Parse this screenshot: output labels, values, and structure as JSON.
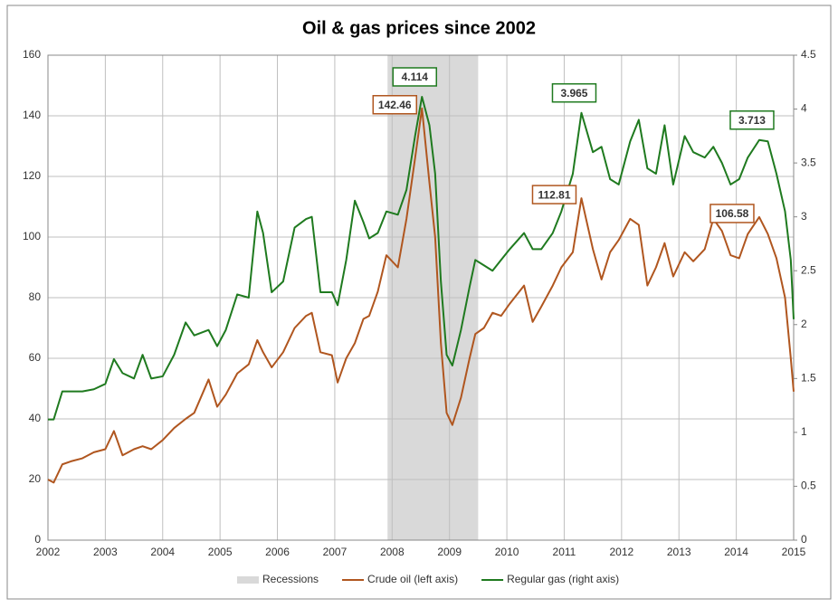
{
  "chart_data": {
    "type": "line",
    "title": "Oil & gas prices since 2002",
    "x": [
      2002.0,
      2002.1,
      2002.25,
      2002.4,
      2002.6,
      2002.8,
      2003.0,
      2003.15,
      2003.3,
      2003.5,
      2003.65,
      2003.8,
      2004.0,
      2004.2,
      2004.4,
      2004.55,
      2004.8,
      2004.95,
      2005.1,
      2005.3,
      2005.5,
      2005.65,
      2005.75,
      2005.9,
      2006.1,
      2006.3,
      2006.5,
      2006.6,
      2006.75,
      2006.95,
      2007.05,
      2007.2,
      2007.35,
      2007.5,
      2007.6,
      2007.75,
      2007.9,
      2008.1,
      2008.25,
      2008.4,
      2008.52,
      2008.65,
      2008.75,
      2008.85,
      2008.95,
      2009.05,
      2009.2,
      2009.35,
      2009.45,
      2009.6,
      2009.75,
      2009.9,
      2010.05,
      2010.3,
      2010.45,
      2010.6,
      2010.8,
      2010.95,
      2011.15,
      2011.3,
      2011.5,
      2011.65,
      2011.8,
      2011.95,
      2012.15,
      2012.3,
      2012.45,
      2012.6,
      2012.75,
      2012.9,
      2013.1,
      2013.25,
      2013.45,
      2013.6,
      2013.75,
      2013.9,
      2014.05,
      2014.2,
      2014.4,
      2014.55,
      2014.7,
      2014.85,
      2014.95,
      2015.0
    ],
    "series": [
      {
        "name": "Crude oil (left axis)",
        "color": "#b0561f",
        "axis": "y",
        "values": [
          20,
          19,
          25,
          26,
          27,
          29,
          30,
          36,
          28,
          30,
          31,
          30,
          33,
          37,
          40,
          42,
          53,
          44,
          48,
          55,
          58,
          66,
          62,
          57,
          62,
          70,
          74,
          75,
          62,
          61,
          52,
          60,
          65,
          73,
          74,
          82,
          94,
          90,
          106,
          126,
          142.46,
          118,
          100,
          65,
          42,
          38,
          47,
          60,
          68,
          70,
          75,
          74,
          78,
          84,
          72,
          77,
          84,
          90,
          95,
          112.81,
          96,
          86,
          95,
          99,
          106,
          104,
          84,
          90,
          98,
          87,
          95,
          92,
          96,
          106,
          102,
          94,
          93,
          101,
          106.58,
          101,
          93,
          80,
          60,
          49
        ],
        "annotations": [
          {
            "x": 2008.52,
            "value": 142.46
          },
          {
            "x": 2011.3,
            "value": 112.81
          },
          {
            "x": 2014.4,
            "value": 106.58
          }
        ]
      },
      {
        "name": "Regular gas (right axis)",
        "color": "#1f7a1f",
        "axis": "y2",
        "values": [
          1.12,
          1.12,
          1.38,
          1.38,
          1.38,
          1.4,
          1.45,
          1.68,
          1.55,
          1.5,
          1.72,
          1.5,
          1.52,
          1.72,
          2.02,
          1.9,
          1.95,
          1.8,
          1.95,
          2.28,
          2.25,
          3.05,
          2.85,
          2.3,
          2.4,
          2.9,
          2.98,
          3.0,
          2.3,
          2.3,
          2.18,
          2.6,
          3.15,
          2.95,
          2.8,
          2.85,
          3.05,
          3.02,
          3.25,
          3.75,
          4.114,
          3.85,
          3.4,
          2.4,
          1.72,
          1.62,
          1.95,
          2.35,
          2.6,
          2.55,
          2.5,
          2.6,
          2.7,
          2.85,
          2.7,
          2.7,
          2.85,
          3.05,
          3.4,
          3.965,
          3.6,
          3.65,
          3.35,
          3.3,
          3.7,
          3.9,
          3.45,
          3.4,
          3.85,
          3.3,
          3.75,
          3.6,
          3.55,
          3.65,
          3.5,
          3.3,
          3.35,
          3.55,
          3.713,
          3.7,
          3.4,
          3.05,
          2.6,
          2.05
        ],
        "annotations": [
          {
            "x": 2008.52,
            "value": 4.114
          },
          {
            "x": 2011.3,
            "value": 3.965
          },
          {
            "x": 2014.4,
            "value": 3.713
          }
        ]
      }
    ],
    "bands": [
      {
        "name": "Recessions",
        "color": "#d9d9d9",
        "from": 2007.92,
        "to": 2009.5
      }
    ],
    "xlim": [
      2002,
      2015
    ],
    "xticks": [
      2002,
      2003,
      2004,
      2005,
      2006,
      2007,
      2008,
      2009,
      2010,
      2011,
      2012,
      2013,
      2014,
      2015
    ],
    "ylim": [
      0,
      160
    ],
    "yticks": [
      0,
      20,
      40,
      60,
      80,
      100,
      120,
      140,
      160
    ],
    "y2lim": [
      0,
      4.5
    ],
    "y2ticks": [
      0,
      0.5,
      1,
      1.5,
      2,
      2.5,
      3,
      3.5,
      4,
      4.5
    ],
    "grid": true,
    "legend": "bottom"
  }
}
